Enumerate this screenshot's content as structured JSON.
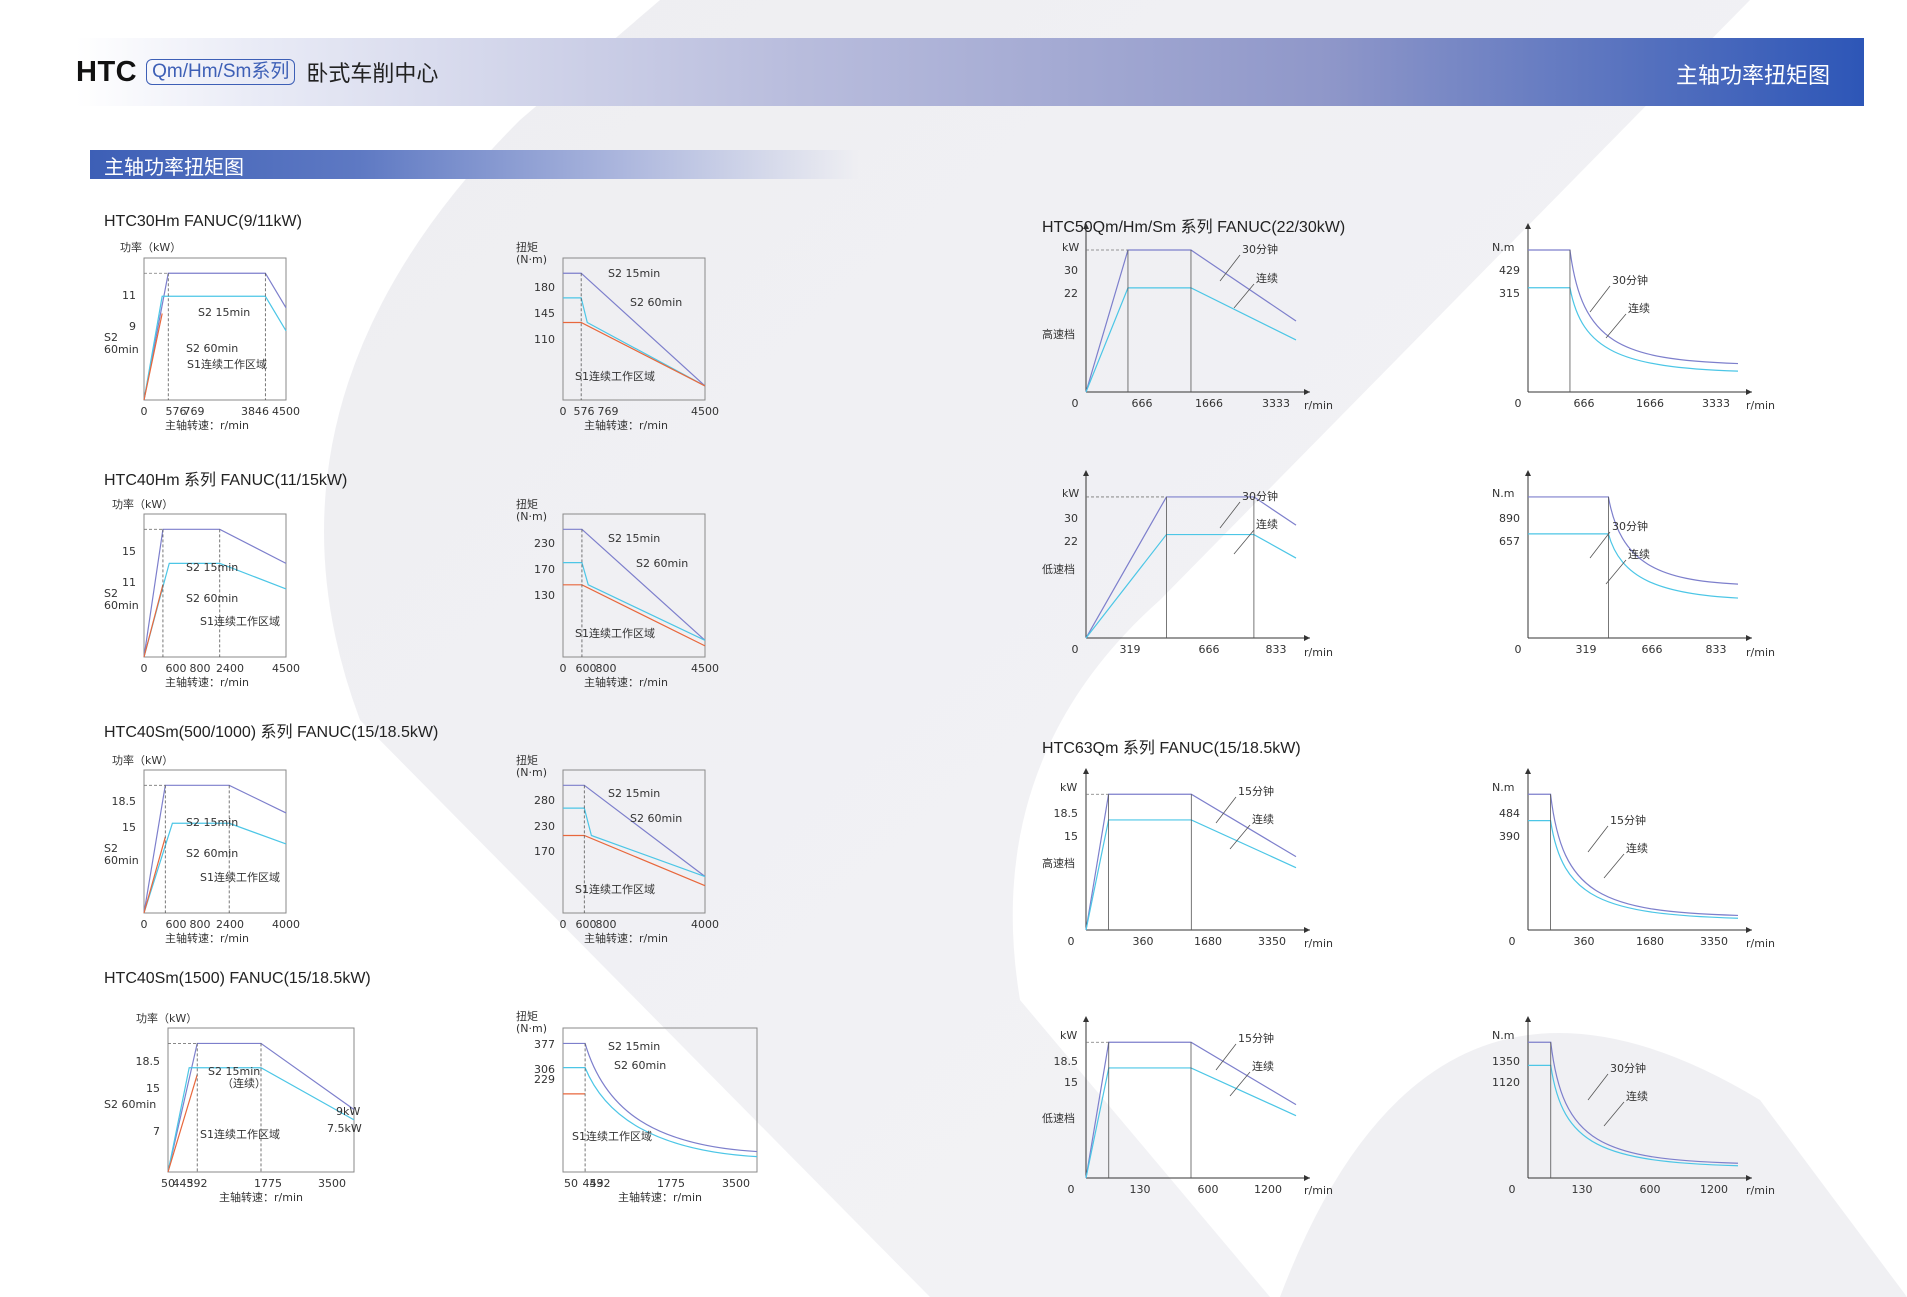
{
  "header": {
    "brand": "HTC",
    "series": "Qm/Hm/Sm系列",
    "product": "卧式车削中心",
    "page_title": "主轴功率扭矩图"
  },
  "section_title": "主轴功率扭矩图",
  "model_titles": [
    "HTC30Hm FANUC(9/11kW)",
    "HTC40Hm 系列 FANUC(11/15kW)",
    "HTC40Sm(500/1000) 系列 FANUC(15/18.5kW)",
    "HTC40Sm(1500)  FANUC(15/18.5kW)",
    "HTC50Qm/Hm/Sm 系列 FANUC(22/30kW)",
    "HTC63Qm 系列 FANUC(15/18.5kW)"
  ],
  "colors": {
    "blue_dark": "#2d56b7",
    "purple": "#7d7fcc",
    "cyan": "#4cc6e6",
    "orange": "#e8673c"
  },
  "chart_data": [
    {
      "id": "c1p",
      "type": "line",
      "title": "",
      "xlabel": "主轴转速：r/min",
      "ylabel": "功率（kW）",
      "xticks": [
        "0",
        "576",
        "769",
        "3846",
        "4500"
      ],
      "yticks": [
        "11",
        "9"
      ],
      "region_label": "S1连续工作区域",
      "side_label": [
        "S2",
        "60min"
      ],
      "series": [
        {
          "name": "S2 15min",
          "x": [
            0,
            769,
            3846,
            4500
          ],
          "y": [
            0,
            11,
            11,
            8
          ]
        },
        {
          "name": "S2 60min",
          "x": [
            0,
            576,
            3846,
            4500
          ],
          "y": [
            0,
            9,
            9,
            6
          ]
        },
        {
          "name": "S1",
          "x": [
            0,
            576
          ],
          "y": [
            0,
            7.5
          ]
        }
      ]
    },
    {
      "id": "c1t",
      "type": "line",
      "title": "",
      "xlabel": "主轴转速：r/min",
      "ylabel": "扭矩 (N·m)",
      "xticks": [
        "0",
        "576",
        "769",
        "4500"
      ],
      "yticks": [
        "180",
        "145",
        "110"
      ],
      "region_label": "S1连续工作区域",
      "series": [
        {
          "name": "S2 15min",
          "x": [
            0,
            576,
            4500
          ],
          "y": [
            180,
            180,
            20
          ]
        },
        {
          "name": "S2 60min",
          "x": [
            0,
            576,
            769,
            4500
          ],
          "y": [
            145,
            145,
            110,
            20
          ]
        },
        {
          "name": "S1",
          "x": [
            0,
            576,
            4500
          ],
          "y": [
            110,
            110,
            20
          ]
        }
      ]
    },
    {
      "id": "c2p",
      "type": "line",
      "title": "",
      "xlabel": "主轴转速：r/min",
      "ylabel": "功率（kW）",
      "xticks": [
        "0",
        "600",
        "800",
        "2400",
        "4500"
      ],
      "yticks": [
        "15",
        "11"
      ],
      "region_label": "S1连续工作区域",
      "side_label": [
        "S2",
        "60min"
      ],
      "series": [
        {
          "name": "S2 15min",
          "x": [
            0,
            600,
            2400,
            4500
          ],
          "y": [
            0,
            15,
            15,
            11
          ]
        },
        {
          "name": "S2 60min",
          "x": [
            0,
            800,
            2400,
            4500
          ],
          "y": [
            0,
            11,
            11,
            8
          ]
        },
        {
          "name": "S1",
          "x": [
            0,
            600
          ],
          "y": [
            0,
            8.5
          ]
        }
      ]
    },
    {
      "id": "c2t",
      "type": "line",
      "title": "",
      "xlabel": "主轴转速：r/min",
      "ylabel": "扭矩 (N·m)",
      "xticks": [
        "0",
        "600",
        "800",
        "4500"
      ],
      "yticks": [
        "230",
        "170",
        "130"
      ],
      "region_label": "S1连续工作区域",
      "series": [
        {
          "name": "S2 15min",
          "x": [
            0,
            600,
            4500
          ],
          "y": [
            230,
            230,
            30
          ]
        },
        {
          "name": "S2 60min",
          "x": [
            0,
            600,
            800,
            4500
          ],
          "y": [
            170,
            170,
            130,
            30
          ]
        },
        {
          "name": "S1",
          "x": [
            0,
            600,
            4500
          ],
          "y": [
            130,
            130,
            20
          ]
        }
      ]
    },
    {
      "id": "c3p",
      "type": "line",
      "title": "",
      "xlabel": "主轴转速：r/min",
      "ylabel": "功率（kW）",
      "xticks": [
        "0",
        "600",
        "800",
        "2400",
        "4000"
      ],
      "yticks": [
        "18.5",
        "15"
      ],
      "region_label": "S1连续工作区域",
      "side_label": [
        "S2",
        "60min"
      ],
      "series": [
        {
          "name": "S2 15min",
          "x": [
            0,
            600,
            2400,
            4000
          ],
          "y": [
            0,
            18.5,
            18.5,
            14.5
          ]
        },
        {
          "name": "S2 60min",
          "x": [
            0,
            800,
            2400,
            4000
          ],
          "y": [
            0,
            13,
            13,
            10
          ]
        },
        {
          "name": "S1",
          "x": [
            0,
            600
          ],
          "y": [
            0,
            11
          ]
        }
      ]
    },
    {
      "id": "c3t",
      "type": "line",
      "title": "",
      "xlabel": "主轴转速：r/min",
      "ylabel": "扭矩 (N·m)",
      "xticks": [
        "0",
        "600",
        "800",
        "4000"
      ],
      "yticks": [
        "280",
        "230",
        "170"
      ],
      "region_label": "S1连续工作区域",
      "series": [
        {
          "name": "S2 15min",
          "x": [
            0,
            600,
            4000
          ],
          "y": [
            280,
            280,
            80
          ]
        },
        {
          "name": "S2 60min",
          "x": [
            0,
            600,
            800,
            4000
          ],
          "y": [
            230,
            230,
            170,
            80
          ]
        },
        {
          "name": "S1",
          "x": [
            0,
            600,
            4000
          ],
          "y": [
            170,
            170,
            60
          ]
        }
      ]
    },
    {
      "id": "c4p",
      "type": "line",
      "title": "",
      "xlabel": "主轴转速：r/min",
      "ylabel": "功率（kW）",
      "xticks": [
        "50",
        "443",
        "592",
        "1775",
        "3500"
      ],
      "yticks": [
        "18.5",
        "15",
        "7"
      ],
      "region_label": "S1连续工作区域",
      "side_label": [
        "S2 60min"
      ],
      "labels": [
        "S2 15min",
        "（连续）",
        "9kW",
        "7.5kW"
      ],
      "series": [
        {
          "name": "S2 15min",
          "x": [
            50,
            592,
            1775,
            3500
          ],
          "y": [
            0,
            18.5,
            18.5,
            9
          ]
        },
        {
          "name": "S2 60min",
          "x": [
            50,
            443,
            1775,
            3500
          ],
          "y": [
            0,
            15,
            15,
            7.5
          ]
        },
        {
          "name": "S1",
          "x": [
            50,
            592
          ],
          "y": [
            0,
            14
          ]
        }
      ]
    },
    {
      "id": "c4t",
      "type": "line",
      "title": "",
      "xlabel": "主轴转速：r/min",
      "ylabel": "扭矩 (N·m)",
      "xticks": [
        "50",
        "443",
        "592",
        "1775",
        "3500"
      ],
      "yticks": [
        "377",
        "306",
        "229"
      ],
      "region_label": "S1连续工作区域",
      "series": [
        {
          "name": "S2 15min",
          "x": [
            50,
            443,
            3500
          ],
          "y": [
            377,
            377,
            60
          ]
        },
        {
          "name": "S2 60min",
          "x": [
            50,
            443,
            3500
          ],
          "y": [
            306,
            306,
            45
          ]
        },
        {
          "name": "S1",
          "x": [
            50,
            443
          ],
          "y": [
            229,
            229
          ]
        }
      ]
    },
    {
      "id": "c5p",
      "type": "line",
      "title": "",
      "xlabel": "r/min",
      "ylabel": "kW",
      "xticks": [
        "0",
        "666",
        "1666",
        "3333"
      ],
      "yticks": [
        "30",
        "22"
      ],
      "gear_label": "高速档",
      "labels": [
        "30分钟",
        "连续"
      ],
      "series": [
        {
          "name": "30分钟",
          "x": [
            0,
            666,
            1666,
            3333
          ],
          "y": [
            0,
            30,
            30,
            15
          ]
        },
        {
          "name": "连续",
          "x": [
            0,
            666,
            1666,
            3333
          ],
          "y": [
            0,
            22,
            22,
            11
          ]
        }
      ]
    },
    {
      "id": "c5t",
      "type": "line",
      "title": "",
      "xlabel": "r/min",
      "ylabel": "N.m",
      "xticks": [
        "0",
        "666",
        "1666",
        "3333"
      ],
      "yticks": [
        "429",
        "315"
      ],
      "labels": [
        "30分钟",
        "连续"
      ],
      "series": [
        {
          "name": "30分钟",
          "x": [
            0,
            666,
            3333
          ],
          "y": [
            429,
            429,
            86
          ]
        },
        {
          "name": "连续",
          "x": [
            0,
            666,
            3333
          ],
          "y": [
            315,
            315,
            63
          ]
        }
      ]
    },
    {
      "id": "c6p",
      "type": "line",
      "title": "",
      "xlabel": "r/min",
      "ylabel": "kW",
      "xticks": [
        "0",
        "319",
        "666",
        "833"
      ],
      "yticks": [
        "30",
        "22"
      ],
      "gear_label": "低速档",
      "labels": [
        "30分钟",
        "连续"
      ],
      "series": [
        {
          "name": "30分钟",
          "x": [
            0,
            319,
            666,
            833
          ],
          "y": [
            0,
            30,
            30,
            24
          ]
        },
        {
          "name": "连续",
          "x": [
            0,
            319,
            666,
            833
          ],
          "y": [
            0,
            22,
            22,
            17
          ]
        }
      ]
    },
    {
      "id": "c6t",
      "type": "line",
      "title": "",
      "xlabel": "r/min",
      "ylabel": "N.m",
      "xticks": [
        "0",
        "319",
        "666",
        "833"
      ],
      "yticks": [
        "890",
        "657"
      ],
      "labels": [
        "30分钟",
        "连续"
      ],
      "series": [
        {
          "name": "30分钟",
          "x": [
            0,
            319,
            833
          ],
          "y": [
            890,
            890,
            340
          ]
        },
        {
          "name": "连续",
          "x": [
            0,
            319,
            833
          ],
          "y": [
            657,
            657,
            252
          ]
        }
      ]
    },
    {
      "id": "c7p",
      "type": "line",
      "title": "",
      "xlabel": "r/min",
      "ylabel": "kW",
      "xticks": [
        "0",
        "360",
        "1680",
        "3350"
      ],
      "yticks": [
        "18.5",
        "15"
      ],
      "gear_label": "高速档",
      "labels": [
        "15分钟",
        "连续"
      ],
      "series": [
        {
          "name": "15分钟",
          "x": [
            0,
            360,
            1680,
            3350
          ],
          "y": [
            0,
            18.5,
            18.5,
            10
          ]
        },
        {
          "name": "连续",
          "x": [
            0,
            360,
            1680,
            3350
          ],
          "y": [
            0,
            15,
            15,
            8.5
          ]
        }
      ]
    },
    {
      "id": "c7t",
      "type": "line",
      "title": "",
      "xlabel": "r/min",
      "ylabel": "N.m",
      "xticks": [
        "0",
        "360",
        "1680",
        "3350"
      ],
      "yticks": [
        "484",
        "390"
      ],
      "labels": [
        "15分钟",
        "连续"
      ],
      "series": [
        {
          "name": "15分钟",
          "x": [
            0,
            360,
            3350
          ],
          "y": [
            484,
            484,
            52
          ]
        },
        {
          "name": "连续",
          "x": [
            0,
            360,
            3350
          ],
          "y": [
            390,
            390,
            42
          ]
        }
      ]
    },
    {
      "id": "c8p",
      "type": "line",
      "title": "",
      "xlabel": "r/min",
      "ylabel": "kW",
      "xticks": [
        "0",
        "130",
        "600",
        "1200"
      ],
      "yticks": [
        "18.5",
        "15"
      ],
      "gear_label": "低速档",
      "labels": [
        "15分钟",
        "连续"
      ],
      "series": [
        {
          "name": "15分钟",
          "x": [
            0,
            130,
            600,
            1200
          ],
          "y": [
            0,
            18.5,
            18.5,
            10
          ]
        },
        {
          "name": "连续",
          "x": [
            0,
            130,
            600,
            1200
          ],
          "y": [
            0,
            15,
            15,
            8.5
          ]
        }
      ]
    },
    {
      "id": "c8t",
      "type": "line",
      "title": "",
      "xlabel": "r/min",
      "ylabel": "N.m",
      "xticks": [
        "0",
        "130",
        "600",
        "1200"
      ],
      "yticks": [
        "1350",
        "1120"
      ],
      "labels": [
        "30分钟",
        "连续"
      ],
      "series": [
        {
          "name": "30分钟",
          "x": [
            0,
            130,
            1200
          ],
          "y": [
            1350,
            1350,
            147
          ]
        },
        {
          "name": "连续",
          "x": [
            0,
            130,
            1200
          ],
          "y": [
            1120,
            1120,
            122
          ]
        }
      ]
    }
  ]
}
